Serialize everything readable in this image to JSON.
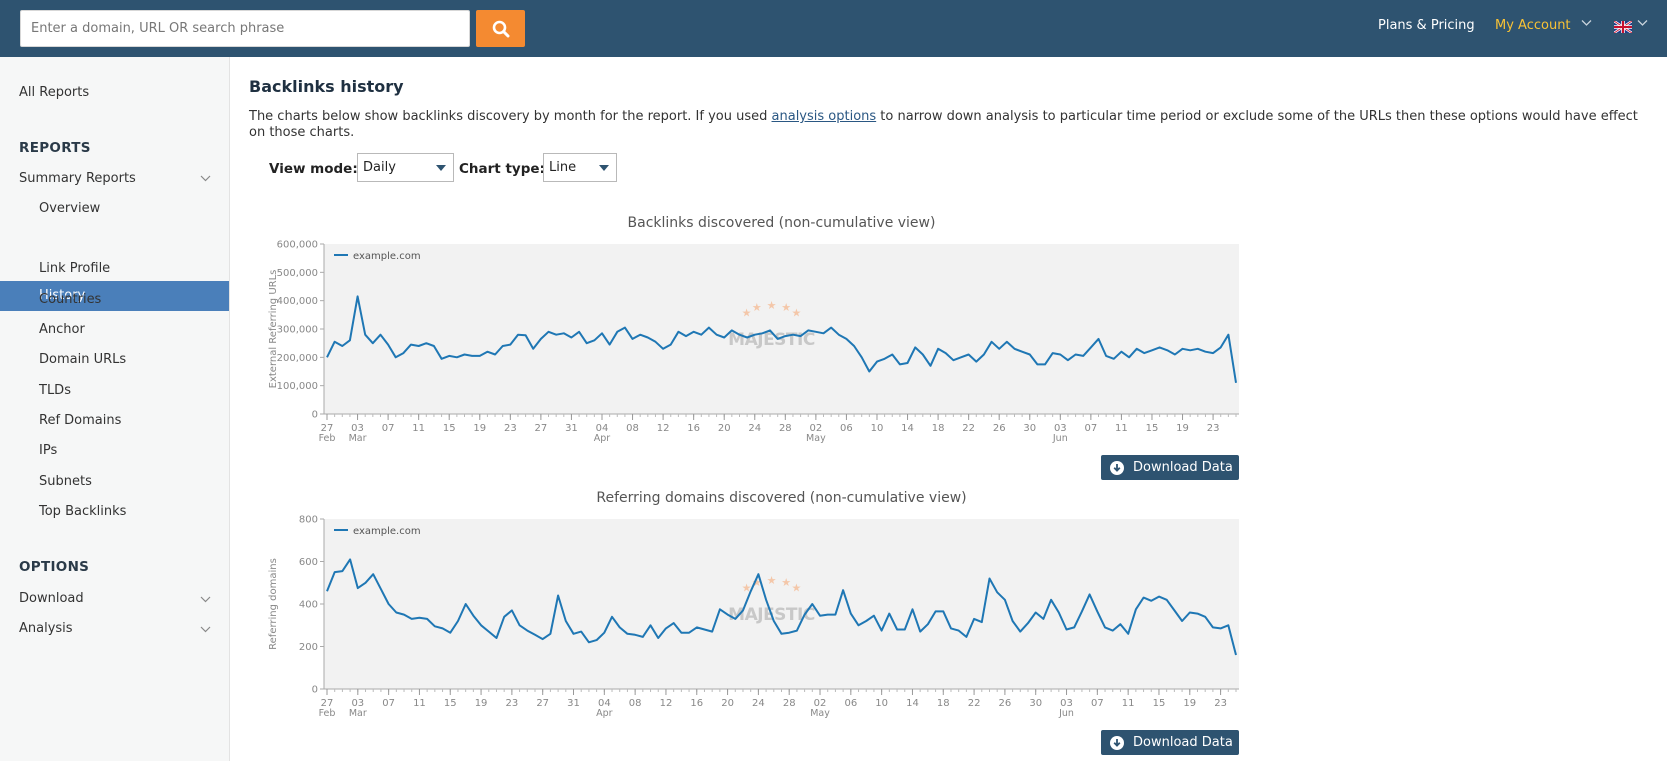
{
  "search": {
    "placeholder": "Enter a domain, URL OR search phrase"
  },
  "topnav": {
    "plans": "Plans & Pricing",
    "account": "My Account"
  },
  "sidebar": {
    "all_reports": "All Reports",
    "reports_heading": "REPORTS",
    "summary_reports": "Summary Reports",
    "items": [
      "Overview",
      "History",
      "Link Profile",
      "Countries",
      "Anchor",
      "Domain URLs",
      "TLDs",
      "Ref Domains",
      "IPs",
      "Subnets",
      "Top Backlinks"
    ],
    "active_item": "History",
    "options_heading": "OPTIONS",
    "download": "Download",
    "analysis": "Analysis"
  },
  "main": {
    "title": "Backlinks history",
    "desc_before": "The charts below show backlinks discovery by month for the report. If you used ",
    "desc_link": "analysis options",
    "desc_after": " to narrow down analysis to particular time period or exclude some of the URLs then these options would have effect on those charts.",
    "view_mode_label": "View mode:",
    "view_mode_value": "Daily",
    "chart_type_label": "Chart type:",
    "chart_type_value": "Line",
    "download_label": "Download Data"
  },
  "colors": {
    "topbar": "#2e5370",
    "accent": "#f48a31",
    "account": "#f8c235",
    "active": "#4a7fba",
    "series": "#1f77b4"
  },
  "chart_data": [
    {
      "type": "line",
      "title": "Backlinks discovered (non-cumulative view)",
      "ylabel": "External Referring URLs",
      "ylim": [
        0,
        600000
      ],
      "yticks": [
        "0",
        "100,000",
        "200,000",
        "300,000",
        "400,000",
        "500,000",
        "600,000"
      ],
      "xtick_labels": [
        {
          "d": "27",
          "m": "Feb"
        },
        {
          "d": "03",
          "m": "Mar"
        },
        {
          "d": "07"
        },
        {
          "d": "11"
        },
        {
          "d": "15"
        },
        {
          "d": "19"
        },
        {
          "d": "23"
        },
        {
          "d": "27"
        },
        {
          "d": "31"
        },
        {
          "d": "04",
          "m": "Apr"
        },
        {
          "d": "08"
        },
        {
          "d": "12"
        },
        {
          "d": "16"
        },
        {
          "d": "20"
        },
        {
          "d": "24"
        },
        {
          "d": "28"
        },
        {
          "d": "02",
          "m": "May"
        },
        {
          "d": "06"
        },
        {
          "d": "10"
        },
        {
          "d": "14"
        },
        {
          "d": "18"
        },
        {
          "d": "22"
        },
        {
          "d": "26"
        },
        {
          "d": "30"
        },
        {
          "d": "03",
          "m": "Jun"
        },
        {
          "d": "07"
        },
        {
          "d": "11"
        },
        {
          "d": "15"
        },
        {
          "d": "19"
        },
        {
          "d": "23"
        }
      ],
      "legend": "top-left",
      "watermark": "MAJESTIC",
      "series": [
        {
          "name": "example.com",
          "values": [
            200000,
            255000,
            240000,
            260000,
            415000,
            280000,
            250000,
            280000,
            245000,
            200000,
            215000,
            245000,
            240000,
            250000,
            240000,
            195000,
            205000,
            200000,
            210000,
            205000,
            205000,
            220000,
            210000,
            240000,
            245000,
            280000,
            278000,
            230000,
            265000,
            290000,
            280000,
            285000,
            270000,
            290000,
            250000,
            260000,
            285000,
            245000,
            290000,
            305000,
            265000,
            280000,
            270000,
            255000,
            230000,
            245000,
            290000,
            275000,
            290000,
            280000,
            305000,
            280000,
            270000,
            295000,
            280000,
            270000,
            280000,
            285000,
            295000,
            265000,
            275000,
            280000,
            275000,
            295000,
            290000,
            285000,
            305000,
            280000,
            265000,
            240000,
            200000,
            150000,
            185000,
            195000,
            210000,
            175000,
            180000,
            235000,
            210000,
            170000,
            230000,
            215000,
            190000,
            200000,
            210000,
            185000,
            210000,
            255000,
            230000,
            255000,
            230000,
            220000,
            210000,
            175000,
            175000,
            215000,
            210000,
            190000,
            210000,
            205000,
            235000,
            265000,
            205000,
            195000,
            220000,
            200000,
            230000,
            215000,
            225000,
            235000,
            225000,
            210000,
            230000,
            225000,
            230000,
            220000,
            215000,
            235000,
            280000,
            110000
          ]
        }
      ]
    },
    {
      "type": "line",
      "title": "Referring domains discovered (non-cumulative view)",
      "ylabel": "Referring domains",
      "ylim": [
        0,
        800
      ],
      "yticks": [
        "0",
        "200",
        "400",
        "600",
        "800"
      ],
      "xtick_labels": [
        {
          "d": "27",
          "m": "Feb"
        },
        {
          "d": "03",
          "m": "Mar"
        },
        {
          "d": "07"
        },
        {
          "d": "11"
        },
        {
          "d": "15"
        },
        {
          "d": "19"
        },
        {
          "d": "23"
        },
        {
          "d": "27"
        },
        {
          "d": "31"
        },
        {
          "d": "04",
          "m": "Apr"
        },
        {
          "d": "08"
        },
        {
          "d": "12"
        },
        {
          "d": "16"
        },
        {
          "d": "20"
        },
        {
          "d": "24"
        },
        {
          "d": "28"
        },
        {
          "d": "02",
          "m": "May"
        },
        {
          "d": "06"
        },
        {
          "d": "10"
        },
        {
          "d": "14"
        },
        {
          "d": "18"
        },
        {
          "d": "22"
        },
        {
          "d": "26"
        },
        {
          "d": "30"
        },
        {
          "d": "03",
          "m": "Jun"
        },
        {
          "d": "07"
        },
        {
          "d": "11"
        },
        {
          "d": "15"
        },
        {
          "d": "19"
        },
        {
          "d": "23"
        }
      ],
      "legend": "top-left",
      "watermark": "MAJESTIC",
      "series": [
        {
          "name": "example.com",
          "values": [
            460,
            550,
            555,
            610,
            475,
            500,
            540,
            470,
            400,
            360,
            350,
            330,
            335,
            330,
            295,
            285,
            265,
            320,
            400,
            345,
            300,
            270,
            240,
            340,
            370,
            300,
            275,
            255,
            235,
            260,
            440,
            320,
            260,
            270,
            220,
            230,
            265,
            340,
            290,
            260,
            255,
            245,
            300,
            240,
            285,
            310,
            265,
            265,
            290,
            280,
            270,
            375,
            350,
            330,
            370,
            460,
            540,
            420,
            320,
            260,
            265,
            275,
            350,
            400,
            345,
            350,
            350,
            465,
            355,
            300,
            320,
            345,
            275,
            355,
            280,
            280,
            375,
            270,
            305,
            365,
            365,
            285,
            275,
            245,
            330,
            315,
            520,
            455,
            420,
            320,
            270,
            310,
            360,
            330,
            420,
            360,
            280,
            290,
            365,
            445,
            365,
            290,
            275,
            305,
            260,
            375,
            430,
            415,
            435,
            420,
            370,
            320,
            360,
            355,
            340,
            290,
            285,
            300,
            160
          ]
        }
      ]
    }
  ]
}
